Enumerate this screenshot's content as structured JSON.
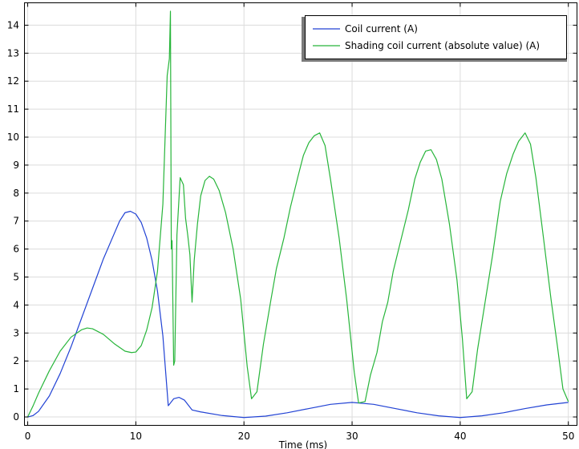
{
  "chart_data": {
    "type": "line",
    "title": "",
    "xlabel": "Time (ms)",
    "ylabel": "",
    "xlim": [
      -0.3,
      50.8
    ],
    "ylim": [
      -0.3,
      14.8
    ],
    "xticks": [
      0,
      10,
      20,
      30,
      40,
      50
    ],
    "yticks": [
      0,
      1,
      2,
      3,
      4,
      5,
      6,
      7,
      8,
      9,
      10,
      11,
      12,
      13,
      14
    ],
    "grid": true,
    "legend_position": "top-right",
    "series": [
      {
        "name": "Coil current (A)",
        "color": "#2142d4",
        "points": [
          [
            0,
            0
          ],
          [
            0.5,
            0.05
          ],
          [
            1,
            0.2
          ],
          [
            2,
            0.75
          ],
          [
            3,
            1.55
          ],
          [
            4,
            2.5
          ],
          [
            5,
            3.55
          ],
          [
            6,
            4.6
          ],
          [
            7,
            5.65
          ],
          [
            8,
            6.55
          ],
          [
            8.5,
            7.0
          ],
          [
            9,
            7.3
          ],
          [
            9.5,
            7.35
          ],
          [
            10,
            7.25
          ],
          [
            10.5,
            6.95
          ],
          [
            11,
            6.4
          ],
          [
            11.5,
            5.6
          ],
          [
            12,
            4.5
          ],
          [
            12.5,
            2.9
          ],
          [
            13,
            0.4
          ],
          [
            13.5,
            0.65
          ],
          [
            14,
            0.7
          ],
          [
            14.5,
            0.6
          ],
          [
            15.2,
            0.25
          ],
          [
            16,
            0.18
          ],
          [
            18,
            0.05
          ],
          [
            20,
            -0.02
          ],
          [
            22,
            0.03
          ],
          [
            24,
            0.15
          ],
          [
            26,
            0.3
          ],
          [
            28,
            0.45
          ],
          [
            30,
            0.52
          ],
          [
            32,
            0.45
          ],
          [
            34,
            0.3
          ],
          [
            36,
            0.15
          ],
          [
            38,
            0.04
          ],
          [
            40,
            -0.02
          ],
          [
            42,
            0.04
          ],
          [
            44,
            0.15
          ],
          [
            46,
            0.3
          ],
          [
            48,
            0.43
          ],
          [
            50,
            0.52
          ]
        ]
      },
      {
        "name": "Shading coil current (absolute value) (A)",
        "color": "#27b53a",
        "points": [
          [
            0,
            0
          ],
          [
            0.5,
            0.4
          ],
          [
            1,
            0.85
          ],
          [
            2,
            1.65
          ],
          [
            3,
            2.35
          ],
          [
            4,
            2.85
          ],
          [
            5,
            3.12
          ],
          [
            5.5,
            3.18
          ],
          [
            6,
            3.15
          ],
          [
            7,
            2.95
          ],
          [
            8,
            2.62
          ],
          [
            9,
            2.35
          ],
          [
            9.6,
            2.3
          ],
          [
            10,
            2.32
          ],
          [
            10.5,
            2.55
          ],
          [
            11,
            3.1
          ],
          [
            11.5,
            3.9
          ],
          [
            12,
            5.2
          ],
          [
            12.5,
            7.6
          ],
          [
            12.9,
            12.2
          ],
          [
            13.1,
            12.8
          ],
          [
            13.2,
            14.5
          ],
          [
            13.28,
            6.0
          ],
          [
            13.35,
            6.3
          ],
          [
            13.5,
            1.85
          ],
          [
            13.6,
            2.0
          ],
          [
            13.8,
            6.5
          ],
          [
            14.1,
            8.55
          ],
          [
            14.4,
            8.3
          ],
          [
            14.6,
            7.1
          ],
          [
            14.8,
            6.5
          ],
          [
            15.0,
            5.8
          ],
          [
            15.2,
            4.1
          ],
          [
            15.4,
            5.6
          ],
          [
            15.7,
            6.9
          ],
          [
            16,
            7.9
          ],
          [
            16.4,
            8.45
          ],
          [
            16.8,
            8.6
          ],
          [
            17.2,
            8.5
          ],
          [
            17.7,
            8.1
          ],
          [
            18.3,
            7.3
          ],
          [
            19,
            6.0
          ],
          [
            19.7,
            4.2
          ],
          [
            20.3,
            1.8
          ],
          [
            20.7,
            0.65
          ],
          [
            21.2,
            0.9
          ],
          [
            21.8,
            2.6
          ],
          [
            22.5,
            4.2
          ],
          [
            23,
            5.3
          ],
          [
            23.7,
            6.4
          ],
          [
            24.3,
            7.5
          ],
          [
            25,
            8.6
          ],
          [
            25.5,
            9.35
          ],
          [
            26,
            9.8
          ],
          [
            26.5,
            10.05
          ],
          [
            27,
            10.15
          ],
          [
            27.5,
            9.7
          ],
          [
            28,
            8.5
          ],
          [
            28.8,
            6.4
          ],
          [
            29.5,
            4.2
          ],
          [
            30.2,
            1.6
          ],
          [
            30.6,
            0.5
          ],
          [
            31.2,
            0.55
          ],
          [
            31.7,
            1.5
          ],
          [
            32.3,
            2.3
          ],
          [
            32.8,
            3.4
          ],
          [
            33.3,
            4.1
          ],
          [
            33.8,
            5.2
          ],
          [
            34.5,
            6.3
          ],
          [
            35.2,
            7.4
          ],
          [
            35.8,
            8.5
          ],
          [
            36.3,
            9.1
          ],
          [
            36.8,
            9.5
          ],
          [
            37.3,
            9.55
          ],
          [
            37.8,
            9.2
          ],
          [
            38.3,
            8.5
          ],
          [
            39,
            6.9
          ],
          [
            39.7,
            4.9
          ],
          [
            40.2,
            2.8
          ],
          [
            40.6,
            0.65
          ],
          [
            41.1,
            0.9
          ],
          [
            41.6,
            2.4
          ],
          [
            42.3,
            4.1
          ],
          [
            43,
            5.8
          ],
          [
            43.7,
            7.7
          ],
          [
            44.3,
            8.7
          ],
          [
            44.9,
            9.4
          ],
          [
            45.4,
            9.85
          ],
          [
            46,
            10.15
          ],
          [
            46.5,
            9.75
          ],
          [
            47,
            8.55
          ],
          [
            47.7,
            6.4
          ],
          [
            48.4,
            4.2
          ],
          [
            49,
            2.5
          ],
          [
            49.5,
            1.0
          ],
          [
            50,
            0.55
          ]
        ]
      }
    ]
  }
}
